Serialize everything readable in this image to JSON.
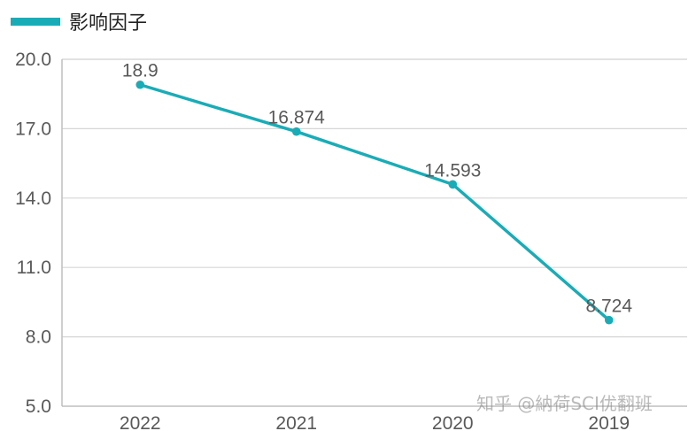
{
  "colors": {
    "series": "#1aacb6",
    "grid": "#d6d6d6",
    "axis": "#bfbfbf",
    "tick_text": "#595959",
    "data_label": "#595959"
  },
  "watermark": "知乎 @納荷SCI优翻班",
  "chart_data": {
    "type": "line",
    "categories": [
      "2022",
      "2021",
      "2020",
      "2019"
    ],
    "series": [
      {
        "name": "影响因子",
        "values": [
          18.9,
          16.874,
          14.593,
          8.724
        ]
      }
    ],
    "data_labels": [
      "18.9",
      "16.874",
      "14.593",
      "8.724"
    ],
    "yticks": [
      "5.0",
      "8.0",
      "11.0",
      "14.0",
      "17.0",
      "20.0"
    ],
    "ylim": [
      5,
      20
    ],
    "grid": true,
    "legend": "top-left",
    "title": "",
    "xlabel": "",
    "ylabel": ""
  }
}
